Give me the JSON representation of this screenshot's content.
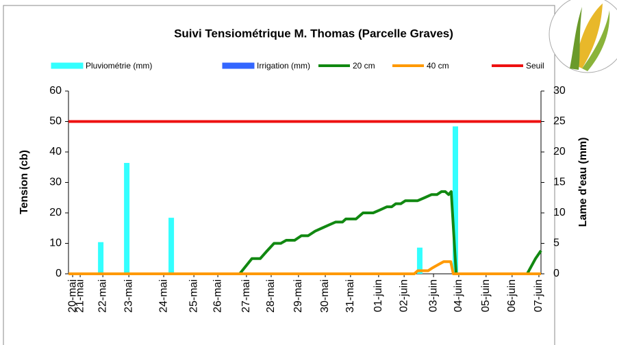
{
  "chart_data": {
    "type": "combo",
    "title": "Suivi Tensiométrique M. Thomas (Parcelle Graves)",
    "y_label": "Tension (cb)",
    "y2_label": "Lame d'eau (mm)",
    "xlim": [
      -0.16,
      18.0
    ],
    "xticks": [
      {
        "value": 0,
        "label": "20-mai"
      },
      {
        "value": 0.29,
        "label": "21-mai"
      },
      {
        "value": 1.16,
        "label": "22-mai"
      },
      {
        "value": 2.16,
        "label": "23-mai"
      },
      {
        "value": 3.5,
        "label": "24-mai"
      },
      {
        "value": 4.66,
        "label": "25-mai"
      },
      {
        "value": 5.58,
        "label": "26-mai"
      },
      {
        "value": 6.68,
        "label": "27-mai"
      },
      {
        "value": 7.63,
        "label": "28-mai"
      },
      {
        "value": 8.68,
        "label": "29-mai"
      },
      {
        "value": 9.71,
        "label": "30-mai"
      },
      {
        "value": 10.68,
        "label": "31-mai"
      },
      {
        "value": 11.76,
        "label": "01-juin"
      },
      {
        "value": 12.74,
        "label": "02-juin"
      },
      {
        "value": 13.87,
        "label": "03-juin"
      },
      {
        "value": 14.84,
        "label": "04-juin"
      },
      {
        "value": 15.89,
        "label": "05-juin"
      },
      {
        "value": 16.89,
        "label": "06-juin"
      },
      {
        "value": 17.92,
        "label": "07-juin"
      }
    ],
    "ylim": [
      0,
      60
    ],
    "yticks": [
      0,
      10,
      20,
      30,
      40,
      50,
      60
    ],
    "y2lim": [
      0,
      30
    ],
    "y2ticks": [
      0,
      5,
      10,
      15,
      20,
      25,
      30
    ],
    "grid": false,
    "series": [
      {
        "name": "Pluviométrie (mm)",
        "type": "bar",
        "axis": "y2",
        "color": "#33ffff",
        "x": [
          1.08,
          2.08,
          3.79,
          13.34,
          14.71
        ],
        "values": [
          5.2,
          18.2,
          9.2,
          4.3,
          24.2
        ]
      },
      {
        "name": "Irrigation (mm)",
        "type": "bar",
        "axis": "y2",
        "color": "#3366ff",
        "x": [],
        "values": []
      },
      {
        "name": "20 cm",
        "type": "line",
        "color": "#118811",
        "x": [
          -0.16,
          6.42,
          6.89,
          7.21,
          7.47,
          7.74,
          8.0,
          8.21,
          8.53,
          8.79,
          9.05,
          9.32,
          9.58,
          9.84,
          10.11,
          10.37,
          10.5,
          10.89,
          11.16,
          11.55,
          11.82,
          12.08,
          12.26,
          12.42,
          12.61,
          12.79,
          13.26,
          13.53,
          13.79,
          14.0,
          14.18,
          14.32,
          14.45,
          14.55,
          14.74,
          17.47,
          17.79,
          18.0
        ],
        "values": [
          0,
          0,
          5,
          5,
          7.5,
          10,
          10,
          11,
          11,
          12.5,
          12.5,
          14,
          15,
          16,
          17,
          17,
          18,
          18,
          20,
          20,
          21,
          22,
          22,
          23,
          23,
          24,
          24,
          25,
          26,
          26,
          27,
          27,
          26,
          27,
          0,
          0,
          5,
          7.6
        ]
      },
      {
        "name": "40 cm",
        "type": "line",
        "color": "#ff9900",
        "x": [
          -0.16,
          13.13,
          13.26,
          13.66,
          13.84,
          14.05,
          14.26,
          14.53,
          14.63,
          18.0
        ],
        "values": [
          0,
          0,
          1,
          1,
          2,
          3,
          4,
          4,
          0,
          0
        ]
      },
      {
        "name": "Seuil",
        "type": "line",
        "color": "#ee1111",
        "x": [
          -0.16,
          18.0
        ],
        "values": [
          50,
          50
        ]
      }
    ]
  }
}
